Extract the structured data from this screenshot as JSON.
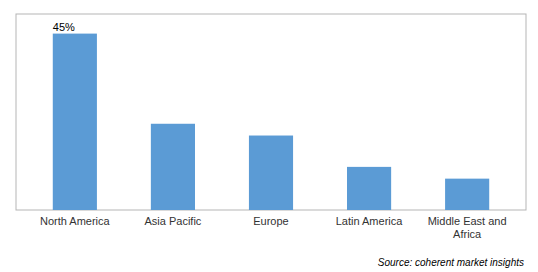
{
  "chart_data": {
    "type": "bar",
    "categories": [
      "North America",
      "Asia Pacific",
      "Europe",
      "Latin America",
      "Middle East and\nAfrica"
    ],
    "values": [
      45,
      22,
      19,
      11,
      8
    ],
    "value_labels": [
      "45%",
      null,
      null,
      null,
      null
    ],
    "color": "#5B9BD5",
    "ylim": [
      0,
      50
    ],
    "grid": false,
    "tick_labels": "x",
    "source": "Source: coherent market insights"
  }
}
